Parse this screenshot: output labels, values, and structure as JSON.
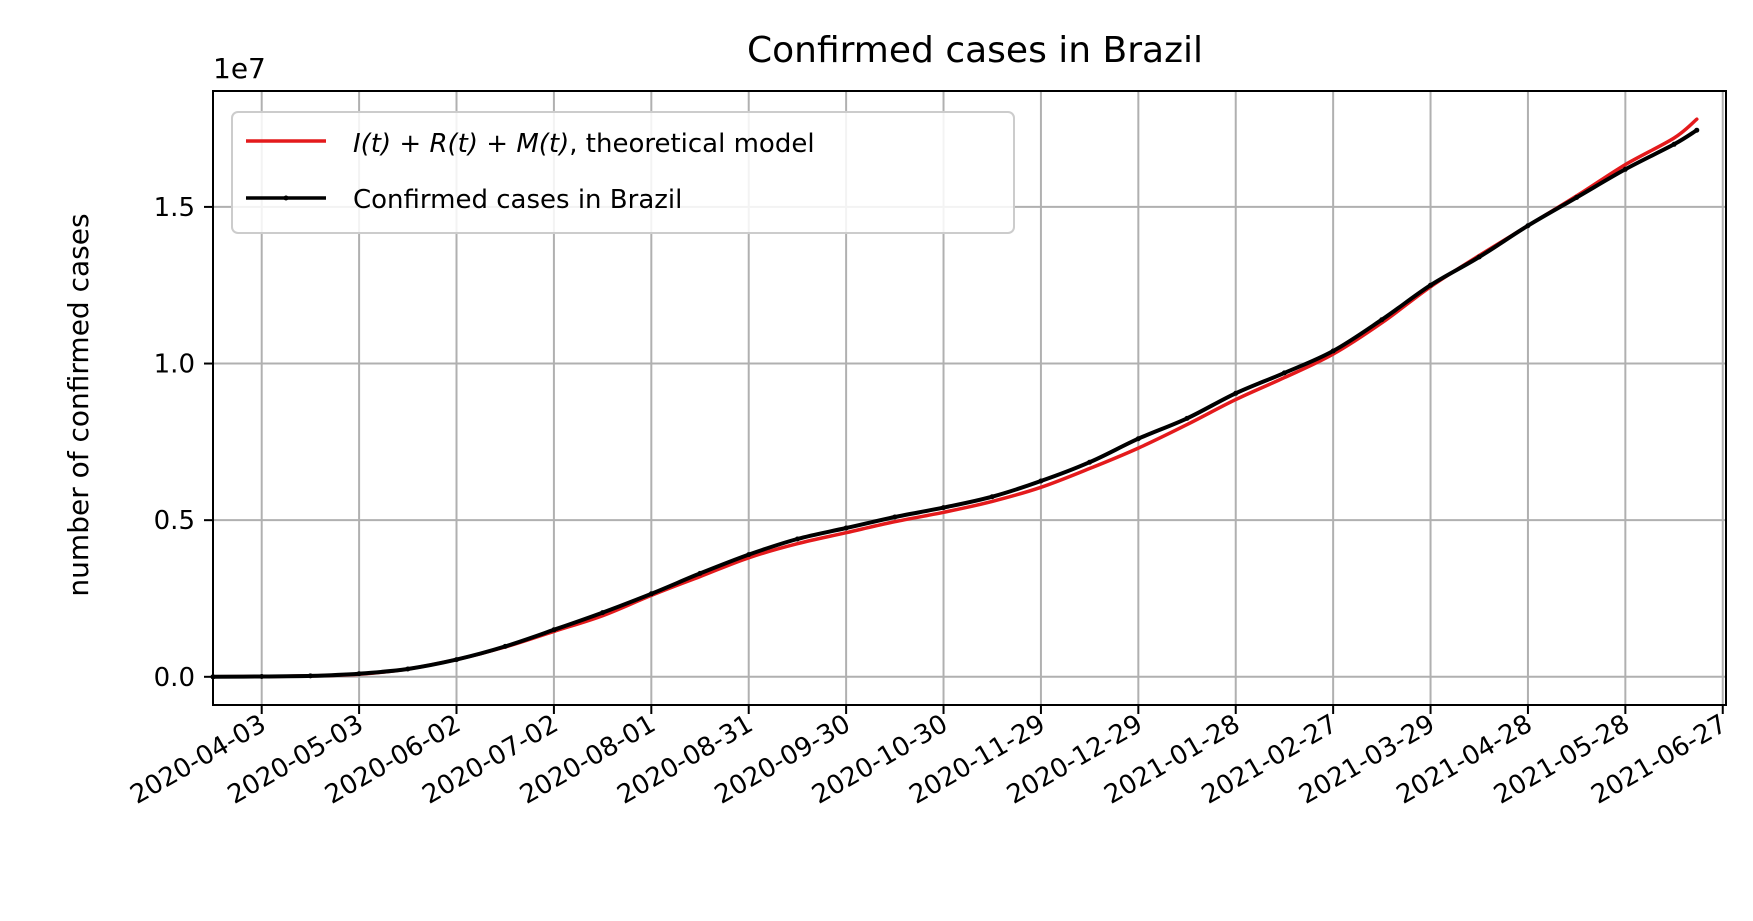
{
  "chart_data": {
    "type": "line",
    "title": "Confirmed cases in Brazil",
    "xlabel": "",
    "ylabel": "number of confirmed cases",
    "y_offset_label": "1e7",
    "x_range": [
      "2020-03-19",
      "2021-06-28"
    ],
    "ylim": [
      -0.09,
      1.87
    ],
    "y_scale_factor": 10000000,
    "x_ticks": [
      "2020-04-03",
      "2020-05-03",
      "2020-06-02",
      "2020-07-02",
      "2020-08-01",
      "2020-08-31",
      "2020-09-30",
      "2020-10-30",
      "2020-11-29",
      "2020-12-29",
      "2021-01-28",
      "2021-02-27",
      "2021-03-29",
      "2021-04-28",
      "2021-05-28",
      "2021-06-27"
    ],
    "y_ticks": [
      0.0,
      0.5,
      1.0,
      1.5
    ],
    "y_tick_labels": [
      "0.0",
      "0.5",
      "1.0",
      "1.5"
    ],
    "grid": true,
    "legend_position": "top-left",
    "series": [
      {
        "name": "I(t) + R(t) + M(t), theoretical model",
        "legend_math": "I(t) + R(t) + M(t)",
        "legend_suffix": ", theoretical model",
        "color": "#e41a1c",
        "marker": false,
        "points": [
          [
            "2020-03-19",
            0.0
          ],
          [
            "2020-04-03",
            0.001
          ],
          [
            "2020-04-18",
            0.003
          ],
          [
            "2020-05-03",
            0.008
          ],
          [
            "2020-05-18",
            0.025
          ],
          [
            "2020-06-02",
            0.055
          ],
          [
            "2020-06-17",
            0.095
          ],
          [
            "2020-07-02",
            0.145
          ],
          [
            "2020-07-17",
            0.195
          ],
          [
            "2020-08-01",
            0.26
          ],
          [
            "2020-08-16",
            0.32
          ],
          [
            "2020-08-31",
            0.38
          ],
          [
            "2020-09-15",
            0.425
          ],
          [
            "2020-09-30",
            0.46
          ],
          [
            "2020-10-15",
            0.495
          ],
          [
            "2020-10-30",
            0.525
          ],
          [
            "2020-11-14",
            0.56
          ],
          [
            "2020-11-29",
            0.605
          ],
          [
            "2020-12-14",
            0.665
          ],
          [
            "2020-12-29",
            0.73
          ],
          [
            "2021-01-13",
            0.805
          ],
          [
            "2021-01-28",
            0.885
          ],
          [
            "2021-02-12",
            0.955
          ],
          [
            "2021-02-27",
            1.03
          ],
          [
            "2021-03-14",
            1.13
          ],
          [
            "2021-03-29",
            1.245
          ],
          [
            "2021-04-13",
            1.345
          ],
          [
            "2021-04-28",
            1.44
          ],
          [
            "2021-05-13",
            1.535
          ],
          [
            "2021-05-28",
            1.635
          ],
          [
            "2021-06-12",
            1.72
          ],
          [
            "2021-06-19",
            1.78
          ]
        ]
      },
      {
        "name": "Confirmed cases in Brazil",
        "color": "#000000",
        "marker": true,
        "points": [
          [
            "2020-03-19",
            0.0
          ],
          [
            "2020-04-03",
            0.001
          ],
          [
            "2020-04-18",
            0.003
          ],
          [
            "2020-05-03",
            0.01
          ],
          [
            "2020-05-18",
            0.025
          ],
          [
            "2020-06-02",
            0.055
          ],
          [
            "2020-06-17",
            0.097
          ],
          [
            "2020-07-02",
            0.15
          ],
          [
            "2020-07-17",
            0.205
          ],
          [
            "2020-08-01",
            0.265
          ],
          [
            "2020-08-16",
            0.33
          ],
          [
            "2020-08-31",
            0.39
          ],
          [
            "2020-09-15",
            0.44
          ],
          [
            "2020-09-30",
            0.475
          ],
          [
            "2020-10-15",
            0.51
          ],
          [
            "2020-10-30",
            0.54
          ],
          [
            "2020-11-14",
            0.575
          ],
          [
            "2020-11-29",
            0.625
          ],
          [
            "2020-12-14",
            0.685
          ],
          [
            "2020-12-29",
            0.76
          ],
          [
            "2021-01-13",
            0.825
          ],
          [
            "2021-01-28",
            0.905
          ],
          [
            "2021-02-12",
            0.97
          ],
          [
            "2021-02-27",
            1.04
          ],
          [
            "2021-03-14",
            1.14
          ],
          [
            "2021-03-29",
            1.25
          ],
          [
            "2021-04-13",
            1.34
          ],
          [
            "2021-04-28",
            1.44
          ],
          [
            "2021-05-13",
            1.53
          ],
          [
            "2021-05-28",
            1.62
          ],
          [
            "2021-06-12",
            1.7
          ],
          [
            "2021-06-19",
            1.745
          ]
        ]
      }
    ]
  }
}
